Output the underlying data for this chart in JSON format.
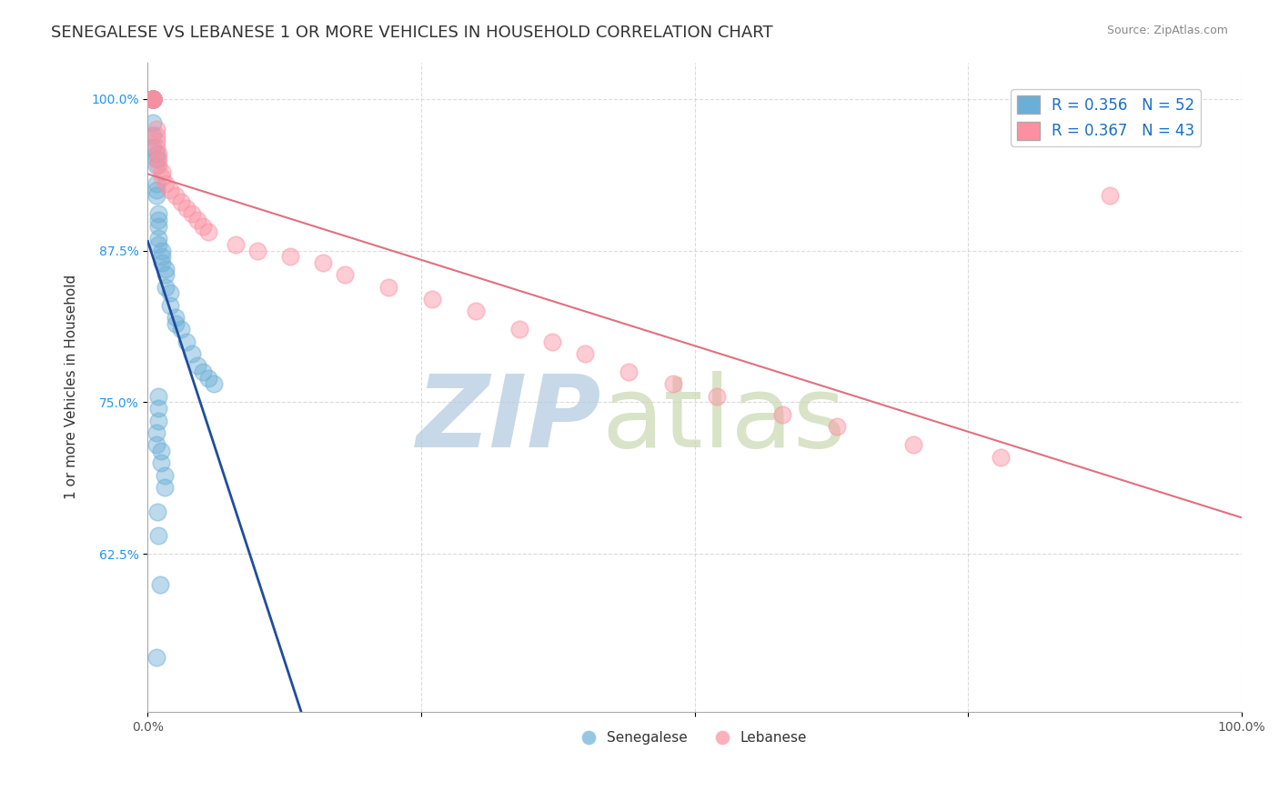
{
  "title": "SENEGALESE VS LEBANESE 1 OR MORE VEHICLES IN HOUSEHOLD CORRELATION CHART",
  "source_text": "Source: ZipAtlas.com",
  "ylabel": "1 or more Vehicles in Household",
  "xlim": [
    0.0,
    1.0
  ],
  "ylim": [
    0.495,
    1.03
  ],
  "yticks": [
    0.625,
    0.75,
    0.875,
    1.0
  ],
  "yticklabels": [
    "62.5%",
    "75.0%",
    "87.5%",
    "100.0%"
  ],
  "senegalese_color": "#6baed6",
  "lebanese_color": "#fc8fa0",
  "trendline_blue_color": "#1f4e9e",
  "trendline_pink_color": "#e07080",
  "watermark_zip": "ZIP",
  "watermark_atlas": "atlas",
  "watermark_color_zip": "#b0c8e0",
  "watermark_color_atlas": "#c8d8b0",
  "title_fontsize": 13,
  "axis_label_fontsize": 11,
  "tick_fontsize": 10,
  "legend_fontsize": 12,
  "senegalese_x": [
    0.005,
    0.005,
    0.005,
    0.005,
    0.005,
    0.005,
    0.005,
    0.005,
    0.005,
    0.005,
    0.008,
    0.008,
    0.008,
    0.008,
    0.008,
    0.008,
    0.01,
    0.01,
    0.01,
    0.01,
    0.01,
    0.013,
    0.013,
    0.013,
    0.016,
    0.016,
    0.016,
    0.02,
    0.02,
    0.025,
    0.025,
    0.03,
    0.035,
    0.04,
    0.045,
    0.05,
    0.055,
    0.06,
    0.01,
    0.01,
    0.01,
    0.008,
    0.008,
    0.012,
    0.012,
    0.015,
    0.015,
    0.009,
    0.01,
    0.011,
    0.008
  ],
  "senegalese_y": [
    1.0,
    1.0,
    1.0,
    1.0,
    1.0,
    1.0,
    1.0,
    0.98,
    0.97,
    0.96,
    0.955,
    0.95,
    0.945,
    0.93,
    0.925,
    0.92,
    0.905,
    0.9,
    0.895,
    0.885,
    0.88,
    0.875,
    0.87,
    0.865,
    0.86,
    0.855,
    0.845,
    0.84,
    0.83,
    0.82,
    0.815,
    0.81,
    0.8,
    0.79,
    0.78,
    0.775,
    0.77,
    0.765,
    0.755,
    0.745,
    0.735,
    0.725,
    0.715,
    0.71,
    0.7,
    0.69,
    0.68,
    0.66,
    0.64,
    0.6,
    0.54
  ],
  "lebanese_x": [
    0.005,
    0.005,
    0.005,
    0.005,
    0.005,
    0.008,
    0.008,
    0.008,
    0.008,
    0.01,
    0.01,
    0.01,
    0.013,
    0.013,
    0.016,
    0.02,
    0.025,
    0.03,
    0.035,
    0.04,
    0.045,
    0.05,
    0.055,
    0.08,
    0.1,
    0.13,
    0.16,
    0.18,
    0.22,
    0.26,
    0.3,
    0.34,
    0.37,
    0.4,
    0.44,
    0.48,
    0.52,
    0.58,
    0.63,
    0.7,
    0.78,
    0.88
  ],
  "lebanese_y": [
    1.0,
    1.0,
    1.0,
    1.0,
    1.0,
    0.975,
    0.97,
    0.965,
    0.96,
    0.955,
    0.95,
    0.945,
    0.94,
    0.935,
    0.93,
    0.925,
    0.92,
    0.915,
    0.91,
    0.905,
    0.9,
    0.895,
    0.89,
    0.88,
    0.875,
    0.87,
    0.865,
    0.855,
    0.845,
    0.835,
    0.825,
    0.81,
    0.8,
    0.79,
    0.775,
    0.765,
    0.755,
    0.74,
    0.73,
    0.715,
    0.705,
    0.92
  ]
}
